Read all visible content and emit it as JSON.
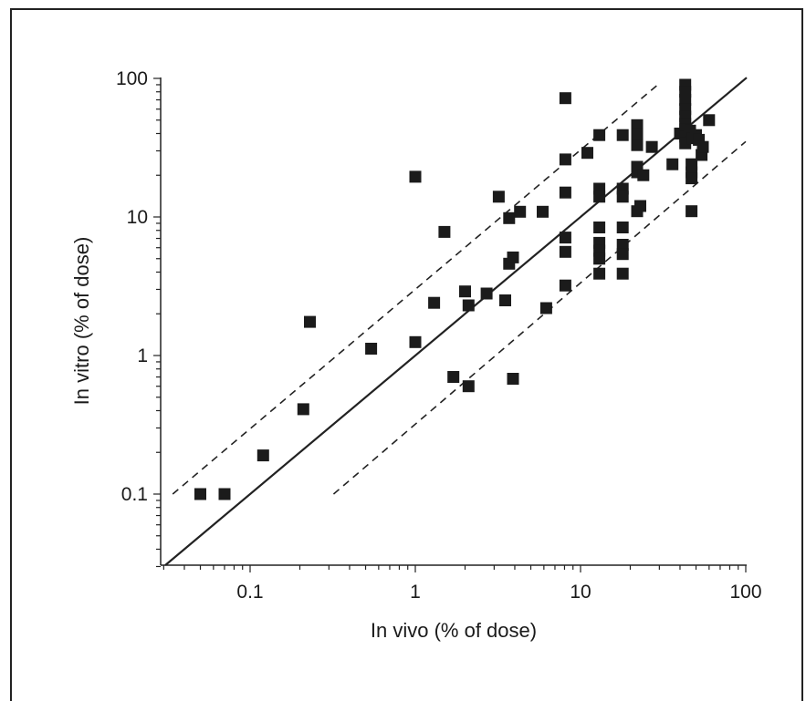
{
  "chart_data": {
    "type": "scatter",
    "title": "",
    "xlabel": "In vivo (% of dose)",
    "ylabel": "In vitro (% of dose)",
    "x_scale": "log",
    "y_scale": "log",
    "xlim": [
      0.03,
      100
    ],
    "ylim": [
      0.03,
      100
    ],
    "x_ticks": [
      {
        "value": 0.1,
        "label": "0.1"
      },
      {
        "value": 1,
        "label": "1"
      },
      {
        "value": 10,
        "label": "10"
      },
      {
        "value": 100,
        "label": "100"
      }
    ],
    "y_ticks": [
      {
        "value": 0.1,
        "label": "0.1"
      },
      {
        "value": 1,
        "label": "1"
      },
      {
        "value": 10,
        "label": "10"
      },
      {
        "value": 100,
        "label": "100"
      }
    ],
    "grid": false,
    "reference_lines": [
      {
        "style": "solid",
        "points": [
          [
            0.03,
            0.03
          ],
          [
            110,
            110
          ]
        ]
      },
      {
        "style": "dashed",
        "points": [
          [
            0.034,
            0.1
          ],
          [
            30,
            92
          ]
        ]
      },
      {
        "style": "dashed",
        "points": [
          [
            0.32,
            0.1
          ],
          [
            100,
            35
          ]
        ]
      }
    ],
    "points": [
      [
        0.05,
        0.1
      ],
      [
        0.07,
        0.1
      ],
      [
        0.12,
        0.19
      ],
      [
        0.21,
        0.41
      ],
      [
        0.23,
        1.75
      ],
      [
        0.54,
        1.12
      ],
      [
        1.0,
        1.25
      ],
      [
        1.0,
        19.5
      ],
      [
        1.3,
        2.4
      ],
      [
        1.5,
        7.8
      ],
      [
        1.7,
        0.7
      ],
      [
        2.0,
        2.9
      ],
      [
        2.1,
        2.3
      ],
      [
        2.1,
        0.6
      ],
      [
        2.7,
        2.8
      ],
      [
        3.2,
        14.0
      ],
      [
        3.5,
        2.5
      ],
      [
        3.7,
        9.8
      ],
      [
        3.7,
        4.6
      ],
      [
        3.9,
        5.1
      ],
      [
        3.9,
        0.68
      ],
      [
        4.3,
        10.9
      ],
      [
        5.9,
        10.9
      ],
      [
        6.2,
        2.2
      ],
      [
        8.1,
        72.0
      ],
      [
        8.1,
        26.0
      ],
      [
        8.1,
        15.0
      ],
      [
        8.1,
        7.1
      ],
      [
        8.1,
        5.6
      ],
      [
        8.1,
        3.2
      ],
      [
        11.0,
        29.0
      ],
      [
        13.0,
        39.0
      ],
      [
        13.0,
        16.0
      ],
      [
        13.0,
        14.0
      ],
      [
        13.0,
        8.4
      ],
      [
        13.0,
        6.5
      ],
      [
        13.0,
        5.7
      ],
      [
        13.0,
        5.0
      ],
      [
        13.0,
        3.9
      ],
      [
        18.0,
        39.0
      ],
      [
        18.0,
        16.0
      ],
      [
        18.0,
        14.0
      ],
      [
        18.0,
        8.4
      ],
      [
        18.0,
        6.3
      ],
      [
        18.0,
        5.4
      ],
      [
        18.0,
        3.9
      ],
      [
        22.0,
        46.0
      ],
      [
        22.0,
        39.0
      ],
      [
        22.0,
        33.0
      ],
      [
        22.0,
        23.0
      ],
      [
        22.0,
        21.0
      ],
      [
        22.0,
        11.0
      ],
      [
        23.0,
        12.0
      ],
      [
        24.0,
        20.0
      ],
      [
        27.0,
        32.0
      ],
      [
        36.0,
        24.0
      ],
      [
        40.0,
        40.0
      ],
      [
        43.0,
        90.0
      ],
      [
        43.0,
        80.0
      ],
      [
        43.0,
        70.0
      ],
      [
        43.0,
        60.0
      ],
      [
        43.0,
        53.0
      ],
      [
        43.0,
        47.0
      ],
      [
        43.0,
        43.0
      ],
      [
        43.0,
        38.0
      ],
      [
        43.0,
        34.0
      ],
      [
        46.0,
        42.0
      ],
      [
        47.0,
        24.0
      ],
      [
        47.0,
        21.0
      ],
      [
        47.0,
        19.0
      ],
      [
        47.0,
        11.0
      ],
      [
        48.0,
        37.0
      ],
      [
        50.0,
        39.0
      ],
      [
        52.0,
        36.0
      ],
      [
        54.0,
        28.0
      ],
      [
        55.0,
        32.0
      ],
      [
        60.0,
        50.0
      ]
    ]
  }
}
